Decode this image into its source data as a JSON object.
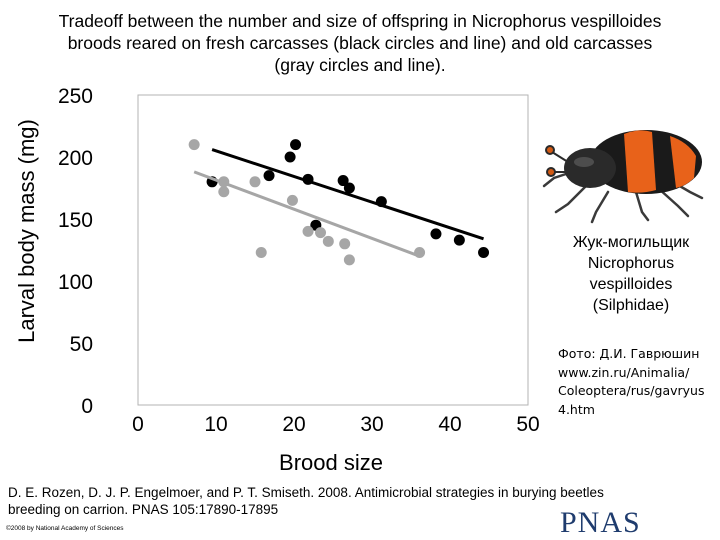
{
  "title": {
    "line1": "Tradeoff between the number and size of offspring in Nicrophorus vespilloides",
    "line2": "broods reared on fresh carcasses (black circles and line) and old carcasses",
    "line3": "(gray circles and line)."
  },
  "chart_data": {
    "type": "scatter",
    "xlabel": "Brood size",
    "ylabel": "Larval body mass (mg)",
    "xlim": [
      0,
      50
    ],
    "ylim": [
      0,
      250
    ],
    "x_ticks": [
      0,
      10,
      20,
      30,
      40,
      50
    ],
    "y_ticks": [
      0,
      50,
      100,
      150,
      200,
      250
    ],
    "grid": false,
    "series": [
      {
        "color": "#000000",
        "points": [
          {
            "x": 9.5,
            "y": 180
          },
          {
            "x": 16.8,
            "y": 185
          },
          {
            "x": 19.5,
            "y": 200
          },
          {
            "x": 20.2,
            "y": 210
          },
          {
            "x": 21.8,
            "y": 182
          },
          {
            "x": 22.8,
            "y": 145
          },
          {
            "x": 26.3,
            "y": 181
          },
          {
            "x": 27.1,
            "y": 175
          },
          {
            "x": 31.2,
            "y": 164
          },
          {
            "x": 38.2,
            "y": 138
          },
          {
            "x": 41.2,
            "y": 133
          },
          {
            "x": 44.3,
            "y": 123
          }
        ],
        "trend": {
          "x1": 9.5,
          "y1": 206,
          "x2": 44.3,
          "y2": 134
        }
      },
      {
        "color": "#a6a6a6",
        "points": [
          {
            "x": 7.2,
            "y": 210
          },
          {
            "x": 11.0,
            "y": 180
          },
          {
            "x": 11.0,
            "y": 172
          },
          {
            "x": 15.0,
            "y": 180
          },
          {
            "x": 15.8,
            "y": 123
          },
          {
            "x": 19.8,
            "y": 165
          },
          {
            "x": 21.8,
            "y": 140
          },
          {
            "x": 23.4,
            "y": 139
          },
          {
            "x": 24.4,
            "y": 132
          },
          {
            "x": 26.5,
            "y": 130
          },
          {
            "x": 27.1,
            "y": 117
          },
          {
            "x": 36.1,
            "y": 123
          }
        ],
        "trend": {
          "x1": 7.2,
          "y1": 188,
          "x2": 36.1,
          "y2": 120
        }
      }
    ]
  },
  "beetle_caption": {
    "line1": "Жук-могильщик",
    "line2": "Nicrophorus",
    "line3": "vespilloides",
    "line4": "(Silphidae)"
  },
  "photo_credit": {
    "line1": "Фото: Д.И. Гаврюшин",
    "line2": "www.zin.ru/Animalia/",
    "line3": "Coleoptera/rus/gavryus",
    "line4": "4.htm"
  },
  "reference": {
    "line1": "D. E. Rozen, D. J. P. Engelmoer, and P. T. Smiseth. 2008. Antimicrobial strategies in burying beetles",
    "line2": "breeding on carrion. PNAS 105:17890-17895"
  },
  "copyright": "©2008 by National Academy of Sciences",
  "logo": "PNAS",
  "colors": {
    "fresh": "#000000",
    "old": "#a6a6a6",
    "pnas_blue": "#1f3c6e"
  }
}
